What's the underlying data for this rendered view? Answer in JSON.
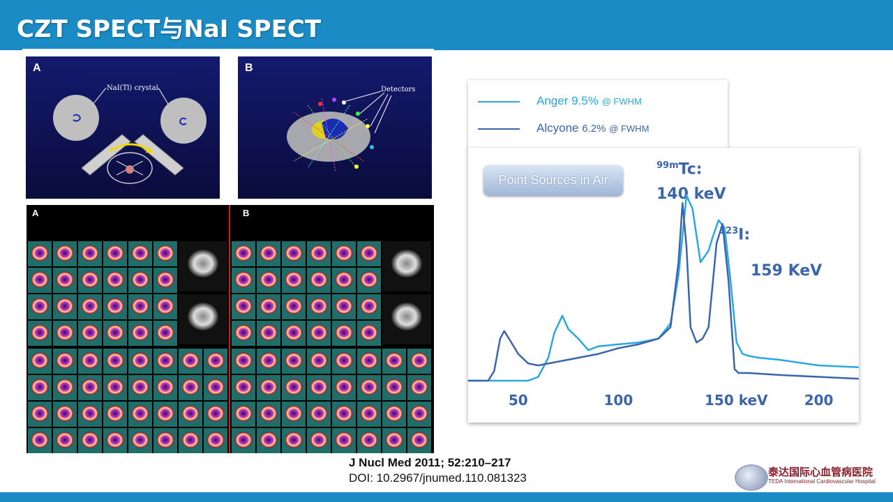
{
  "header": {
    "title": "CZT SPECT与NaI SPECT"
  },
  "panel_a": {
    "label": "A",
    "crystal_label": "NaI(Tl) crystal"
  },
  "panel_b": {
    "label": "B",
    "detectors_label": "Detectors"
  },
  "scan": {
    "label_a": "A",
    "label_b": "B"
  },
  "legend": {
    "items": [
      {
        "name": "Anger",
        "value": "9.5%",
        "suffix": "@ FWHM",
        "color": "#29a8e0"
      },
      {
        "name": "Alcyone",
        "value": "6.2%",
        "suffix": "@ FWHM",
        "color": "#3a64ac"
      }
    ]
  },
  "chart": {
    "badge": "Point Sources in Air",
    "tc_sup": "99m",
    "tc_label": "Tc:",
    "tc_energy": "140 keV",
    "i_sup": "123",
    "i_label": "I:",
    "i_energy": "159 KeV"
  },
  "chart_data": {
    "type": "line",
    "title": "",
    "xlabel": "",
    "ylabel": "",
    "xlim": [
      25,
      220
    ],
    "ylim": [
      0,
      100
    ],
    "x_ticks": [
      {
        "value": 50,
        "label": "50"
      },
      {
        "value": 100,
        "label": "100"
      },
      {
        "value": 150,
        "label": "150 keV"
      },
      {
        "value": 200,
        "label": "200"
      }
    ],
    "series": [
      {
        "name": "Anger",
        "color": "#29a8e0",
        "x": [
          25,
          55,
          60,
          65,
          68,
          72,
          75,
          80,
          85,
          90,
          100,
          110,
          120,
          126,
          130,
          134,
          137,
          141,
          145,
          147,
          150,
          153,
          156,
          159,
          162,
          165,
          170,
          180,
          200,
          220
        ],
        "y": [
          0,
          0,
          2,
          12,
          25,
          34,
          27,
          22,
          16,
          18,
          19,
          20,
          22,
          30,
          55,
          97,
          90,
          62,
          68,
          75,
          84,
          80,
          52,
          20,
          14,
          13,
          12,
          11,
          8,
          7
        ]
      },
      {
        "name": "Alcyone",
        "color": "#3a64ac",
        "x": [
          25,
          35,
          38,
          41,
          43,
          46,
          50,
          55,
          60,
          70,
          80,
          90,
          100,
          110,
          120,
          126,
          130,
          132,
          134,
          136,
          139,
          142,
          145,
          149,
          152,
          155,
          158,
          160,
          165,
          180,
          200,
          220
        ],
        "y": [
          0,
          0,
          5,
          22,
          26,
          21,
          14,
          9,
          8,
          10,
          12,
          14,
          17,
          19,
          22,
          28,
          62,
          93,
          70,
          28,
          20,
          22,
          28,
          72,
          82,
          52,
          6,
          4,
          4,
          3,
          2,
          1
        ]
      }
    ]
  },
  "citation": {
    "journal": "J Nucl Med 2011; 52:210–217",
    "doi": "DOI: 10.2967/jnumed.110.081323"
  },
  "logo": {
    "cn": "泰达国际心血管病医院",
    "en": "TEDA International Cardiovascular Hospital"
  }
}
